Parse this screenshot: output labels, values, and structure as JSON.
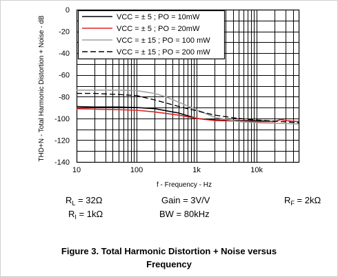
{
  "chart_data": {
    "type": "line",
    "title": "",
    "xlabel": "f - Frequency - Hz",
    "ylabel": "THD+N - Total Harmonic Distortion + Noise - dB",
    "xscale": "log",
    "xlim": [
      10,
      50000
    ],
    "ylim": [
      -140,
      0
    ],
    "x_ticks": [
      10,
      100,
      1000,
      10000
    ],
    "x_tick_labels": [
      "10",
      "100",
      "1k",
      "10k"
    ],
    "y_ticks": [
      0,
      -20,
      -40,
      -60,
      -80,
      -100,
      -120,
      -140
    ],
    "y_tick_labels": [
      "0",
      "-20",
      "-40",
      "-60",
      "-80",
      "-100",
      "-120",
      "-140"
    ],
    "grid": true,
    "legend": "top-left",
    "series": [
      {
        "name": "VCC = ± 5 ; PO = 10mW",
        "color": "#000000",
        "dash": "solid",
        "x": [
          10,
          20,
          50,
          100,
          200,
          500,
          1000,
          2000,
          5000,
          10000,
          15000,
          20000,
          25000,
          30000,
          50000
        ],
        "y": [
          -89,
          -89.5,
          -89.5,
          -90,
          -91,
          -95,
          -100,
          -101.5,
          -102,
          -102,
          -102.5,
          -103,
          -101,
          -102,
          -103
        ]
      },
      {
        "name": "VCC = ± 5 ; PO = 20mW",
        "color": "#e02020",
        "dash": "solid",
        "x": [
          10,
          20,
          50,
          100,
          200,
          500,
          1000,
          2000,
          5000,
          10000,
          20000,
          25000,
          30000,
          50000
        ],
        "y": [
          -91,
          -91.5,
          -92,
          -92.5,
          -94,
          -97,
          -100,
          -102,
          -102.5,
          -103,
          -103,
          -101,
          -102,
          -103
        ]
      },
      {
        "name": "VCC = ± 15 ; PO = 100 mW",
        "color": "#a0a0a0",
        "dash": "solid",
        "x": [
          10,
          20,
          50,
          100,
          200,
          300,
          500,
          1000,
          2000,
          5000,
          10000,
          20000,
          50000
        ],
        "y": [
          -74,
          -74,
          -74,
          -74.5,
          -77,
          -80,
          -85,
          -92,
          -99,
          -103,
          -104,
          -104.5,
          -105
        ]
      },
      {
        "name": "VCC = ± 15 ; PO = 200 mW",
        "color": "#000000",
        "dash": "dashed",
        "x": [
          10,
          20,
          50,
          100,
          200,
          500,
          1000,
          2000,
          5000,
          10000,
          20000,
          50000
        ],
        "y": [
          -77,
          -77,
          -78,
          -79,
          -83,
          -89,
          -93,
          -97,
          -100,
          -101.5,
          -102.5,
          -104
        ]
      }
    ]
  },
  "conditions": {
    "rl_symbol": "R",
    "rl_sub": "L",
    "rl_value": "= 32Ω",
    "gain": "Gain = 3V/V",
    "rf_symbol": "R",
    "rf_sub": "F",
    "rf_value": "= 2kΩ",
    "ri_symbol": "R",
    "ri_sub": "I",
    "ri_value": "= 1kΩ",
    "bw": "BW = 80kHz"
  },
  "caption": {
    "line1": "Figure 3. Total Harmonic Distortion + Noise versus",
    "line2": "Frequency"
  }
}
